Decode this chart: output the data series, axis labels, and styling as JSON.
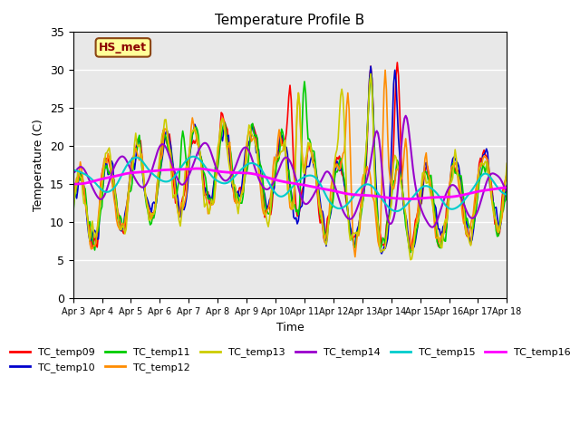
{
  "title": "Temperature Profile B",
  "xlabel": "Time",
  "ylabel": "Temperature (C)",
  "ylim": [
    0,
    35
  ],
  "annotation_text": "HS_met",
  "annotation_color": "#8B0000",
  "annotation_bg": "#FFFF99",
  "background_color": "#E8E8E8",
  "series_colors": {
    "TC_temp09": "#FF0000",
    "TC_temp10": "#0000CD",
    "TC_temp11": "#00CC00",
    "TC_temp12": "#FF8C00",
    "TC_temp13": "#CCCC00",
    "TC_temp14": "#9900CC",
    "TC_temp15": "#00CCCC",
    "TC_temp16": "#FF00FF"
  },
  "xtick_labels": [
    "Apr 3",
    "Apr 4",
    "Apr 5",
    "Apr 6",
    "Apr 7",
    "Apr 8",
    "Apr 9",
    "Apr 10",
    "Apr 11",
    "Apr 12",
    "Apr 13",
    "Apr 14",
    "Apr 15",
    "Apr 16",
    "Apr 17",
    "Apr 18"
  ],
  "xtick_positions": [
    0,
    24,
    48,
    72,
    96,
    120,
    144,
    168,
    192,
    216,
    240,
    264,
    288,
    312,
    336,
    360
  ],
  "n_points": 361
}
